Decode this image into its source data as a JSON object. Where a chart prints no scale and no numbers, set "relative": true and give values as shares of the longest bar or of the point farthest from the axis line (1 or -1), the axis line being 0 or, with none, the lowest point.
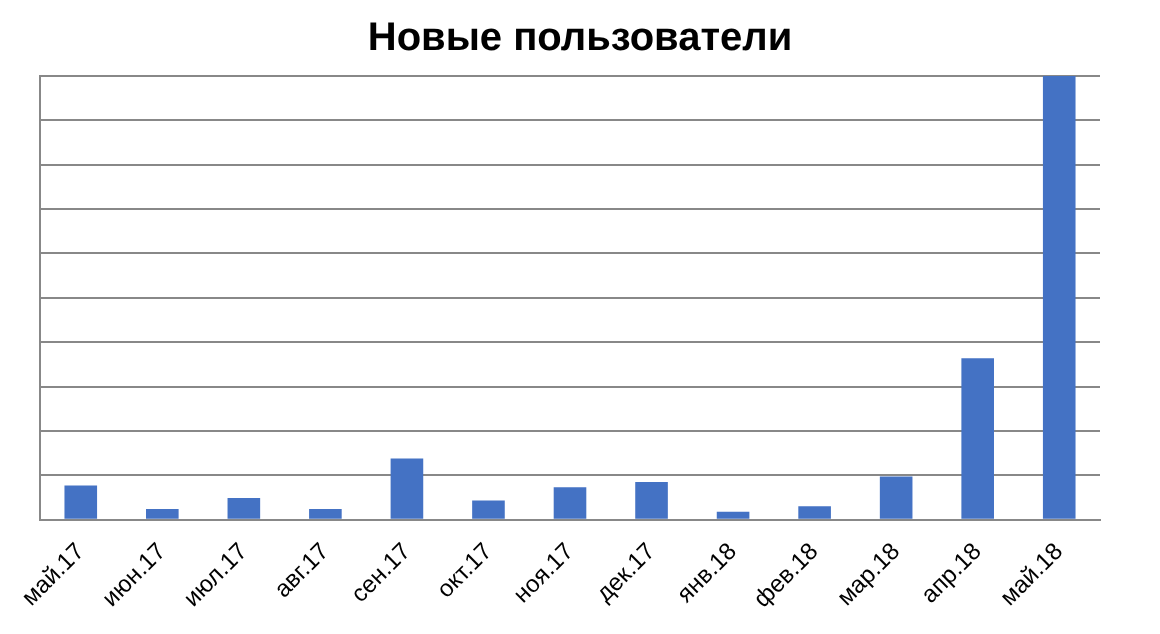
{
  "chart_data": {
    "type": "bar",
    "title": "Новые пользователи",
    "relative": true,
    "grid": "y",
    "categories": [
      "май.17",
      "июн.17",
      "июл.17",
      "авг.17",
      "сен.17",
      "окт.17",
      "ноя.17",
      "дек.17",
      "янв.18",
      "фев.18",
      "мар.18",
      "апр.18",
      "май.18"
    ],
    "series": [
      {
        "color": "#4472c4",
        "values": [
          0.077,
          0.024,
          0.049,
          0.024,
          0.138,
          0.043,
          0.073,
          0.085,
          0.018,
          0.03,
          0.097,
          0.364,
          1
        ]
      }
    ]
  }
}
